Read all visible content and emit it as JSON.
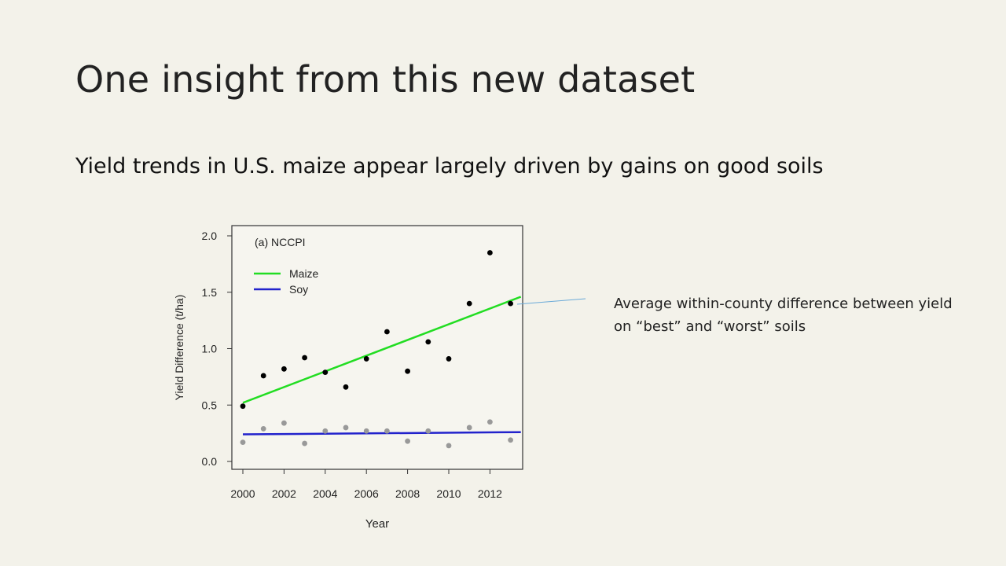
{
  "slide": {
    "title": "One insight from this new dataset",
    "subtitle": "Yield trends in U.S. maize appear largely driven by gains on good soils",
    "annotation": "Average within-county difference between yield on “best” and “worst” soils"
  },
  "chart_data": {
    "type": "scatter",
    "panel_label": "(a) NCCPI",
    "xlabel": "Year",
    "ylabel": "Yield Difference (t/ha)",
    "xlim": [
      2000,
      2013
    ],
    "ylim": [
      0.0,
      2.0
    ],
    "xticks": [
      2000,
      2002,
      2004,
      2006,
      2008,
      2010,
      2012
    ],
    "yticks": [
      "0.0",
      "0.5",
      "1.0",
      "1.5",
      "2.0"
    ],
    "legend_position": "top-left",
    "series": [
      {
        "name": "Maize",
        "color": "#000000",
        "trend_color": "#22dd22",
        "points": [
          [
            2000,
            0.49
          ],
          [
            2001,
            0.76
          ],
          [
            2002,
            0.82
          ],
          [
            2003,
            0.92
          ],
          [
            2004,
            0.79
          ],
          [
            2005,
            0.66
          ],
          [
            2006,
            0.91
          ],
          [
            2007,
            1.15
          ],
          [
            2008,
            0.8
          ],
          [
            2009,
            1.06
          ],
          [
            2010,
            0.91
          ],
          [
            2011,
            1.4
          ],
          [
            2012,
            1.85
          ],
          [
            2013,
            1.4
          ]
        ],
        "trend": [
          [
            2000,
            0.52
          ],
          [
            2013.5,
            1.46
          ]
        ]
      },
      {
        "name": "Soy",
        "color": "#999999",
        "trend_color": "#2222cc",
        "points": [
          [
            2000,
            0.17
          ],
          [
            2001,
            0.29
          ],
          [
            2002,
            0.34
          ],
          [
            2003,
            0.16
          ],
          [
            2004,
            0.27
          ],
          [
            2005,
            0.3
          ],
          [
            2006,
            0.27
          ],
          [
            2007,
            0.27
          ],
          [
            2008,
            0.18
          ],
          [
            2009,
            0.27
          ],
          [
            2010,
            0.14
          ],
          [
            2011,
            0.3
          ],
          [
            2012,
            0.35
          ],
          [
            2013,
            0.19
          ]
        ],
        "trend": [
          [
            2000,
            0.24
          ],
          [
            2013.5,
            0.26
          ]
        ]
      }
    ]
  }
}
